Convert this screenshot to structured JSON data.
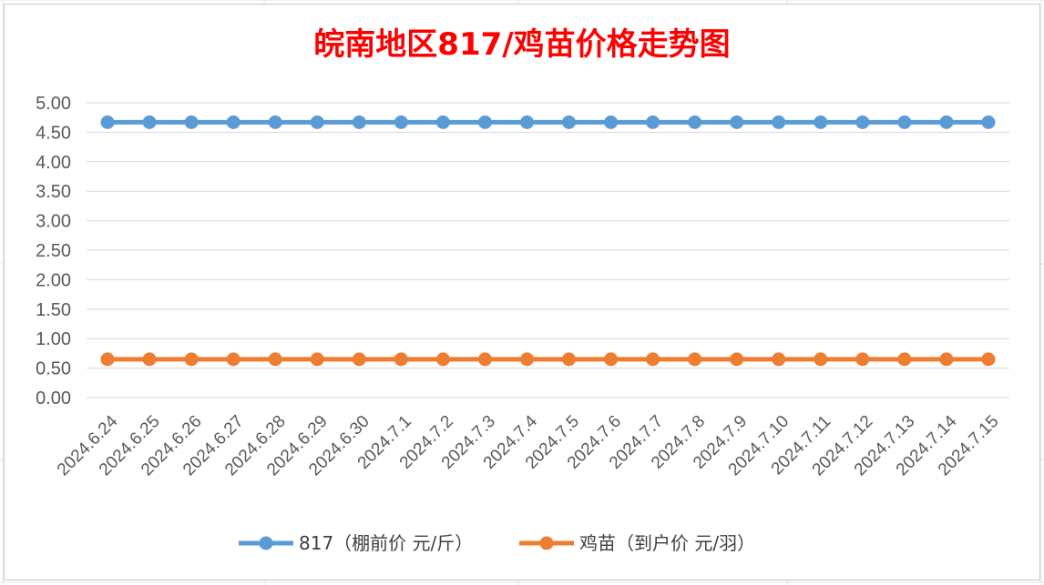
{
  "chart_data": {
    "type": "line",
    "title": "皖南地区817/鸡苗价格走势图",
    "categories": [
      "2024.6.24",
      "2024.6.25",
      "2024.6.26",
      "2024.6.27",
      "2024.6.28",
      "2024.6.29",
      "2024.6.30",
      "2024.7.1",
      "2024.7.2",
      "2024.7.3",
      "2024.7.4",
      "2024.7.5",
      "2024.7.6",
      "2024.7.7",
      "2024.7.8",
      "2024.7.9",
      "2024.7.10",
      "2024.7.11",
      "2024.7.12",
      "2024.7.13",
      "2024.7.14",
      "2024.7.15"
    ],
    "yticks": [
      "0.00",
      "0.50",
      "1.00",
      "1.50",
      "2.00",
      "2.50",
      "3.00",
      "3.50",
      "4.00",
      "4.50",
      "5.00"
    ],
    "ylim": [
      0,
      5
    ],
    "grid": true,
    "legend_position": "bottom",
    "series": [
      {
        "name": "817（棚前价 元/斤）",
        "color": "#5b9bd5",
        "values": [
          4.67,
          4.67,
          4.67,
          4.67,
          4.67,
          4.67,
          4.67,
          4.67,
          4.67,
          4.67,
          4.67,
          4.67,
          4.67,
          4.67,
          4.67,
          4.67,
          4.67,
          4.67,
          4.67,
          4.67,
          4.67,
          4.67
        ]
      },
      {
        "name": "鸡苗（到户价 元/羽）",
        "color": "#ed7d31",
        "values": [
          0.65,
          0.65,
          0.65,
          0.65,
          0.65,
          0.65,
          0.65,
          0.65,
          0.65,
          0.65,
          0.65,
          0.65,
          0.65,
          0.65,
          0.65,
          0.65,
          0.65,
          0.65,
          0.65,
          0.65,
          0.65,
          0.65
        ]
      }
    ]
  }
}
